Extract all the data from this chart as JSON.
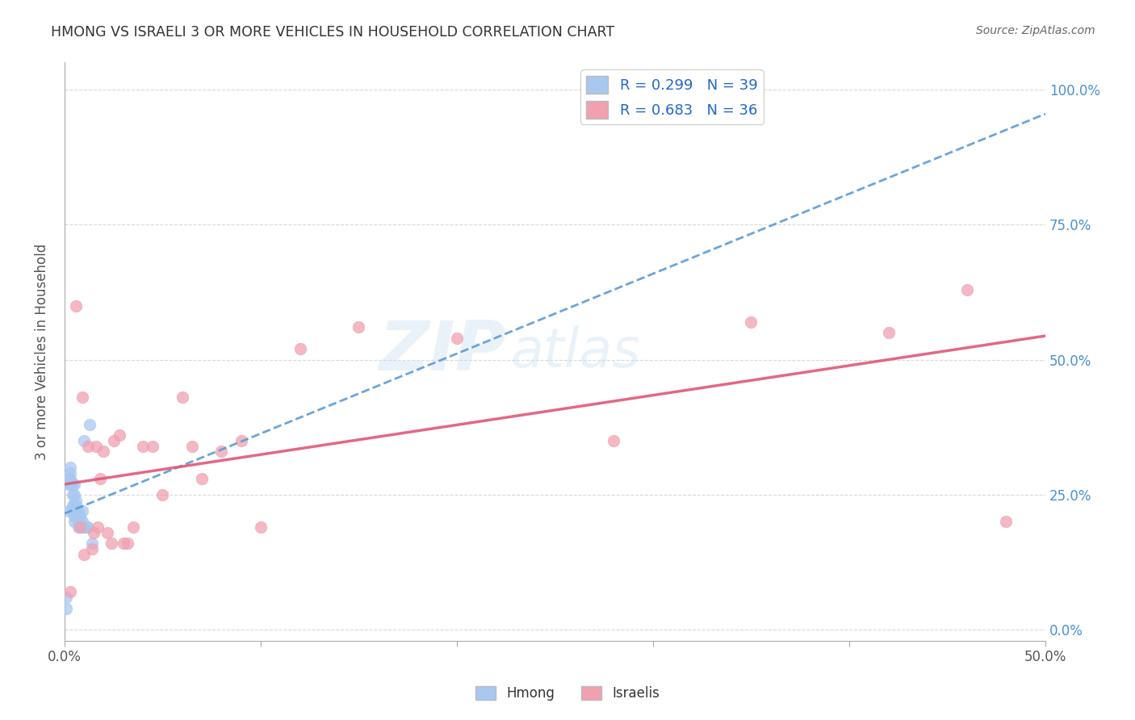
{
  "title": "HMONG VS ISRAELI 3 OR MORE VEHICLES IN HOUSEHOLD CORRELATION CHART",
  "source": "Source: ZipAtlas.com",
  "ylabel": "3 or more Vehicles in Household",
  "watermark_zip": "ZIP",
  "watermark_atlas": "atlas",
  "xmin": 0.0,
  "xmax": 0.5,
  "ymin": -0.02,
  "ymax": 1.05,
  "xticks": [
    0.0,
    0.1,
    0.2,
    0.3,
    0.4,
    0.5
  ],
  "xtick_labels": [
    "0.0%",
    "",
    "",
    "",
    "",
    "50.0%"
  ],
  "yticks": [
    0.0,
    0.25,
    0.5,
    0.75,
    1.0
  ],
  "ytick_labels_right": [
    "0.0%",
    "25.0%",
    "50.0%",
    "75.0%",
    "100.0%"
  ],
  "hmong_R": 0.299,
  "hmong_N": 39,
  "israeli_R": 0.683,
  "israeli_N": 36,
  "hmong_color": "#a8c8f0",
  "israeli_color": "#f0a0b0",
  "hmong_line_color": "#5b9bd5",
  "israeli_line_color": "#e05878",
  "legend_labels": [
    "Hmong",
    "Israelis"
  ],
  "hmong_x": [
    0.001,
    0.001,
    0.002,
    0.002,
    0.002,
    0.003,
    0.003,
    0.003,
    0.003,
    0.004,
    0.004,
    0.004,
    0.004,
    0.005,
    0.005,
    0.005,
    0.005,
    0.005,
    0.005,
    0.006,
    0.006,
    0.006,
    0.006,
    0.007,
    0.007,
    0.007,
    0.007,
    0.008,
    0.008,
    0.008,
    0.009,
    0.009,
    0.009,
    0.01,
    0.01,
    0.011,
    0.012,
    0.013,
    0.014
  ],
  "hmong_y": [
    0.04,
    0.06,
    0.22,
    0.27,
    0.28,
    0.27,
    0.28,
    0.29,
    0.3,
    0.22,
    0.23,
    0.25,
    0.27,
    0.2,
    0.21,
    0.22,
    0.23,
    0.25,
    0.27,
    0.21,
    0.22,
    0.23,
    0.24,
    0.19,
    0.2,
    0.21,
    0.22,
    0.19,
    0.2,
    0.21,
    0.19,
    0.2,
    0.22,
    0.19,
    0.35,
    0.19,
    0.19,
    0.38,
    0.16
  ],
  "israeli_x": [
    0.003,
    0.006,
    0.008,
    0.009,
    0.01,
    0.012,
    0.014,
    0.015,
    0.016,
    0.017,
    0.018,
    0.02,
    0.022,
    0.024,
    0.025,
    0.028,
    0.03,
    0.032,
    0.035,
    0.04,
    0.045,
    0.05,
    0.06,
    0.065,
    0.07,
    0.08,
    0.09,
    0.1,
    0.12,
    0.15,
    0.2,
    0.28,
    0.35,
    0.42,
    0.46,
    0.48
  ],
  "israeli_y": [
    0.07,
    0.6,
    0.19,
    0.43,
    0.14,
    0.34,
    0.15,
    0.18,
    0.34,
    0.19,
    0.28,
    0.33,
    0.18,
    0.16,
    0.35,
    0.36,
    0.16,
    0.16,
    0.19,
    0.34,
    0.34,
    0.25,
    0.43,
    0.34,
    0.28,
    0.33,
    0.35,
    0.19,
    0.52,
    0.56,
    0.54,
    0.35,
    0.57,
    0.55,
    0.63,
    0.2
  ],
  "background_color": "#ffffff",
  "grid_color": "#d0d0d0"
}
